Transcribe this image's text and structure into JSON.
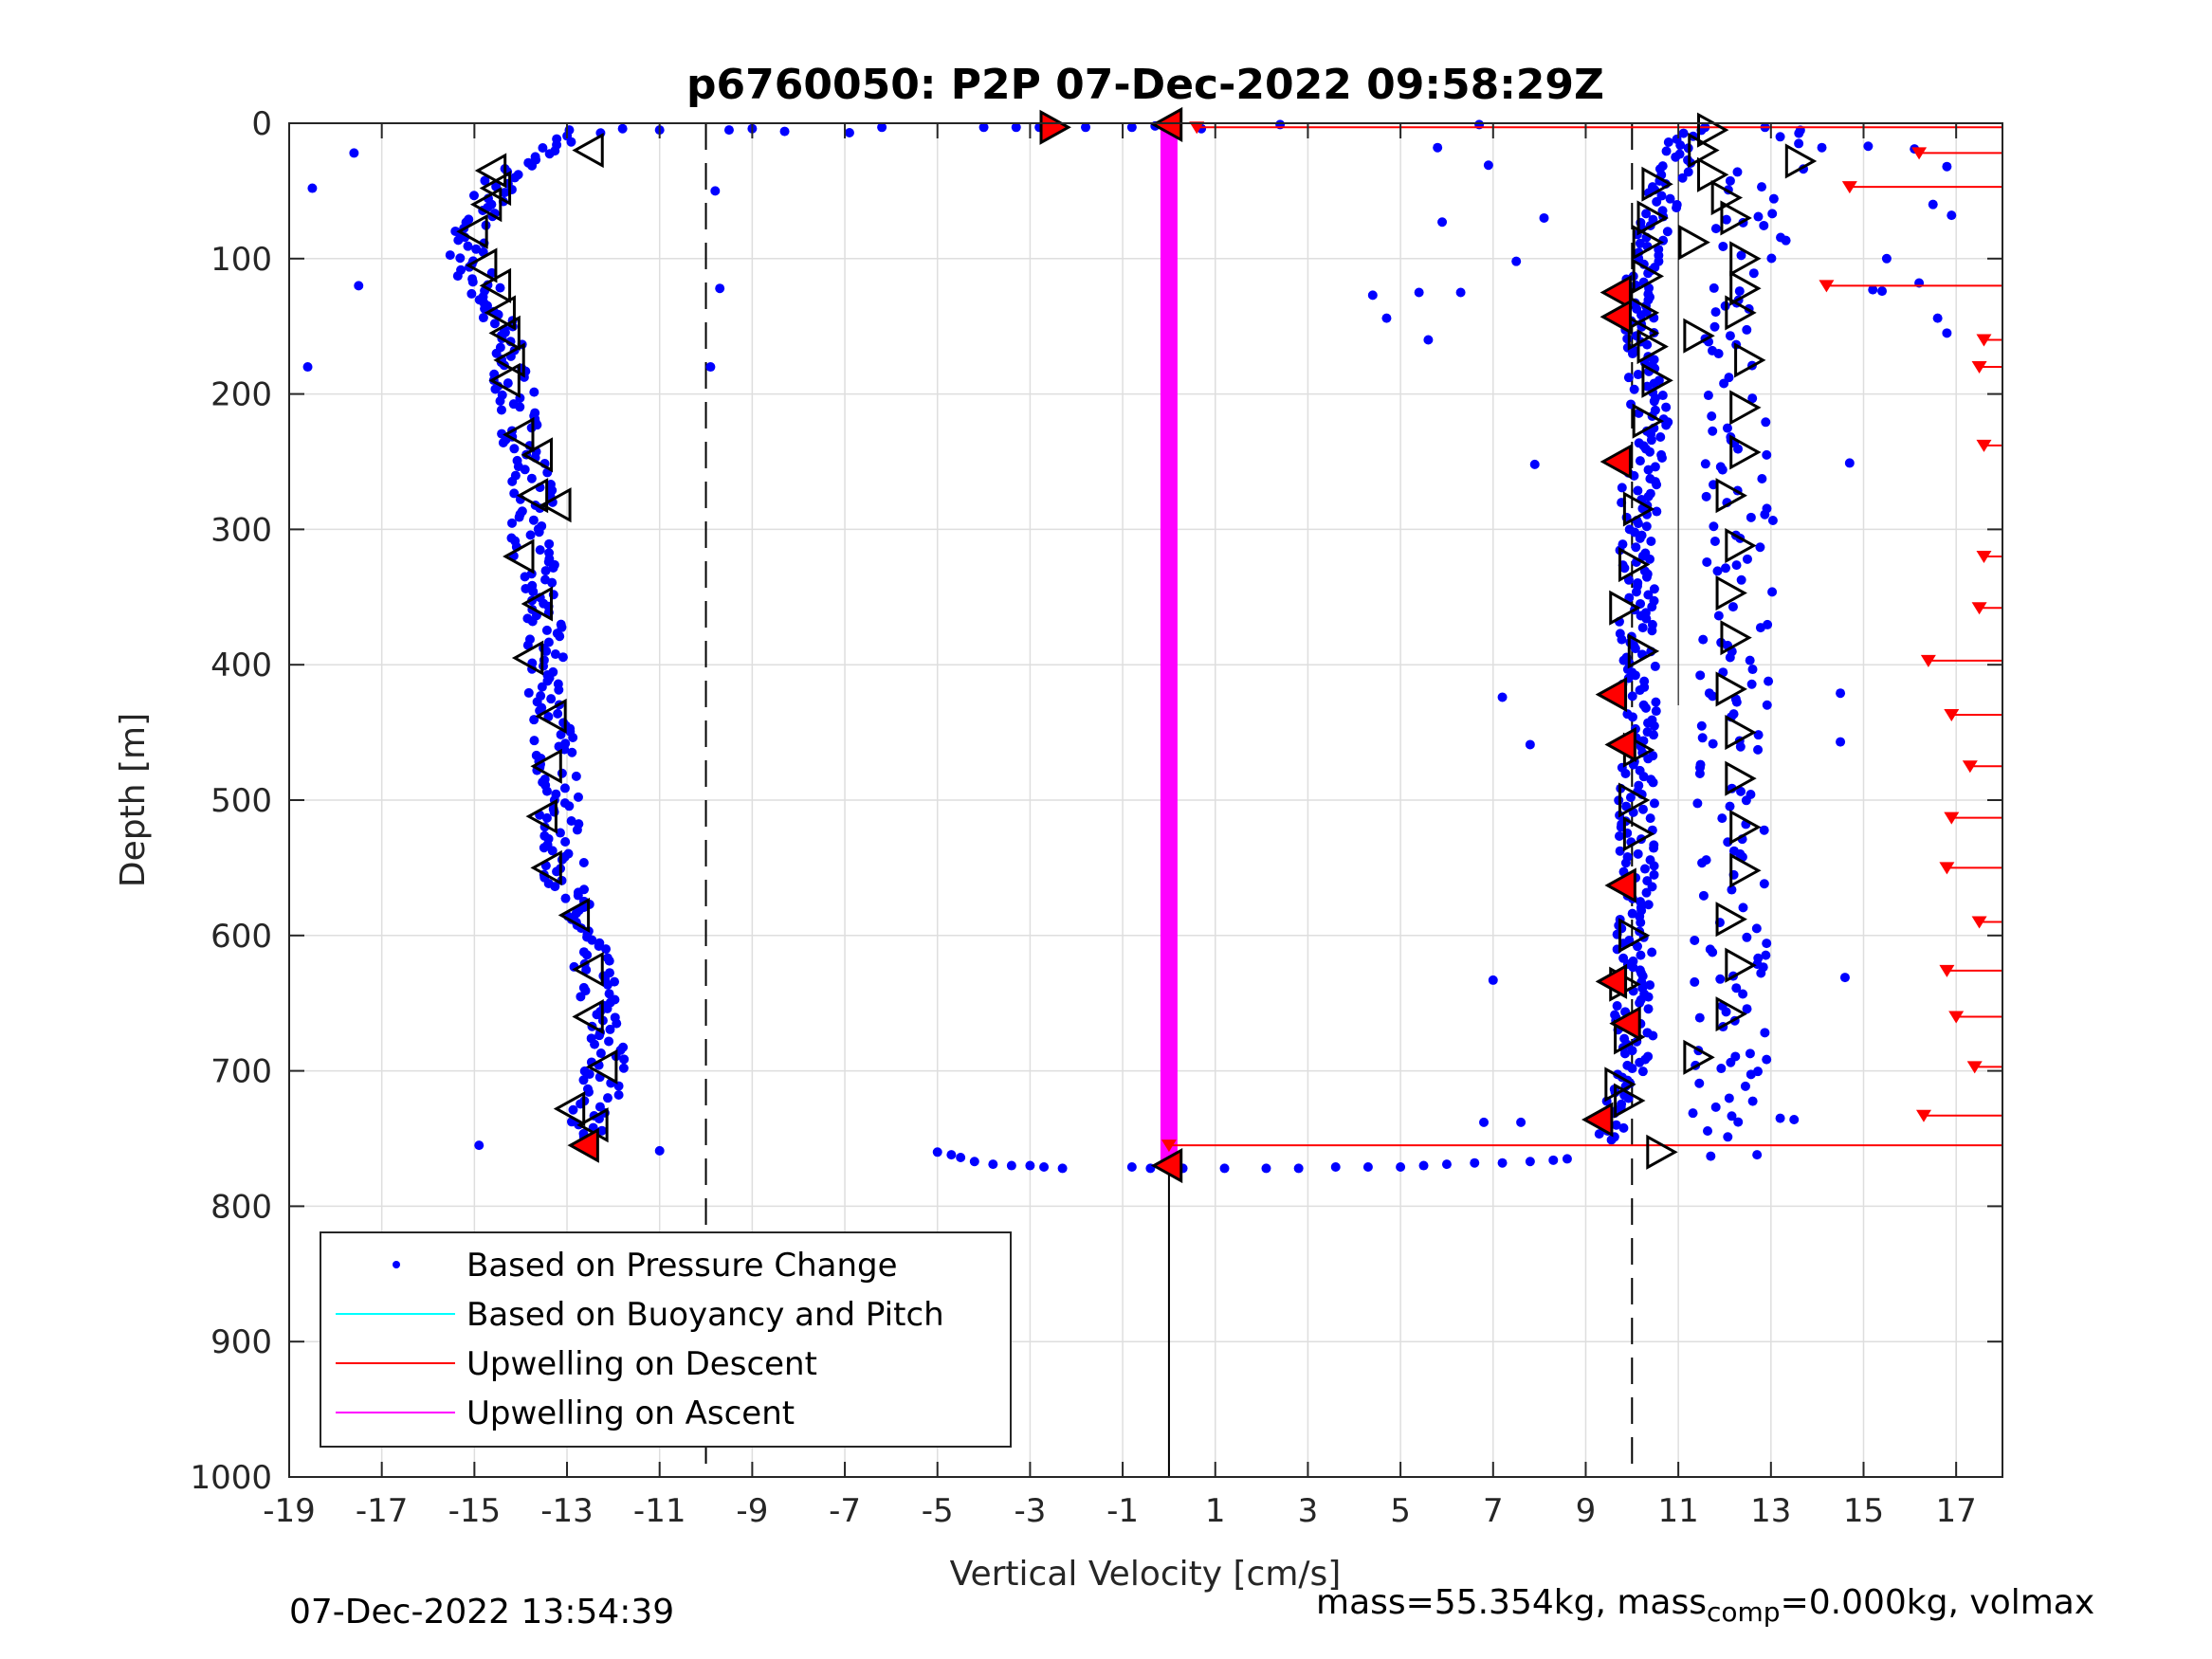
{
  "chart_data": {
    "type": "scatter",
    "title": "p6760050: P2P 07-Dec-2022 09:58:29Z",
    "xlabel": "Vertical Velocity [cm/s]",
    "ylabel": "Depth [m]",
    "xlim": [
      -19,
      18
    ],
    "ylim": [
      0,
      1000
    ],
    "y_reversed": true,
    "grid": true,
    "xticks": [
      "-19",
      "-17",
      "-15",
      "-13",
      "-11",
      "-9",
      "-7",
      "-5",
      "-3",
      "-1",
      "1",
      "3",
      "5",
      "7",
      "9",
      "11",
      "13",
      "15",
      "17"
    ],
    "yticks": [
      "0",
      "100",
      "200",
      "300",
      "400",
      "500",
      "600",
      "700",
      "800",
      "900",
      "1000"
    ],
    "legend_position": "bottom-left",
    "legend": [
      {
        "name": "Based on Pressure Change",
        "color": "#0000ff",
        "marker": "dot"
      },
      {
        "name": "Based on Buoyancy and Pitch",
        "color": "#00ffff",
        "marker": "line"
      },
      {
        "name": "Upwelling on Descent",
        "color": "#ff0000",
        "marker": "line"
      },
      {
        "name": "Upwelling on Ascent",
        "color": "#ff00ff",
        "marker": "line"
      }
    ],
    "reference_lines": {
      "dashed_x": [
        -10,
        10
      ],
      "solid_x_segment": {
        "x": 0,
        "y": [
          760,
          1000
        ]
      },
      "thin_solid_x_segment": {
        "x": 11,
        "y": [
          0,
          430
        ]
      }
    },
    "dive_profile": [
      [
        -12.5,
        5
      ],
      [
        -13.2,
        15
      ],
      [
        -14,
        30
      ],
      [
        -14.6,
        50
      ],
      [
        -15,
        70
      ],
      [
        -15.2,
        90
      ],
      [
        -15,
        110
      ],
      [
        -14.7,
        130
      ],
      [
        -14.5,
        150
      ],
      [
        -14.3,
        170
      ],
      [
        -14.2,
        190
      ],
      [
        -14.1,
        210
      ],
      [
        -13.9,
        240
      ],
      [
        -13.7,
        270
      ],
      [
        -13.8,
        300
      ],
      [
        -13.7,
        330
      ],
      [
        -13.6,
        360
      ],
      [
        -13.5,
        390
      ],
      [
        -13.4,
        420
      ],
      [
        -13.3,
        450
      ],
      [
        -13.2,
        480
      ],
      [
        -13.2,
        510
      ],
      [
        -13.1,
        540
      ],
      [
        -13,
        570
      ],
      [
        -12.7,
        600
      ],
      [
        -12.4,
        630
      ],
      [
        -12.3,
        660
      ],
      [
        -12.1,
        690
      ],
      [
        -12.3,
        720
      ],
      [
        -12.6,
        740
      ],
      [
        -12.8,
        755
      ]
    ],
    "climb_profile": [
      [
        9.5,
        750
      ],
      [
        9.6,
        735
      ],
      [
        9.9,
        720
      ],
      [
        10,
        700
      ],
      [
        10.1,
        680
      ],
      [
        10,
        660
      ],
      [
        10,
        640
      ],
      [
        10.1,
        620
      ],
      [
        10,
        600
      ],
      [
        10,
        580
      ],
      [
        10.2,
        560
      ],
      [
        10.1,
        540
      ],
      [
        10.1,
        520
      ],
      [
        10.1,
        500
      ],
      [
        10.1,
        480
      ],
      [
        10.2,
        460
      ],
      [
        10.2,
        440
      ],
      [
        10.1,
        420
      ],
      [
        10.2,
        400
      ],
      [
        10.1,
        380
      ],
      [
        10.1,
        360
      ],
      [
        10.2,
        340
      ],
      [
        10.1,
        320
      ],
      [
        10.2,
        300
      ],
      [
        10.1,
        280
      ],
      [
        10.2,
        260
      ],
      [
        10.3,
        240
      ],
      [
        10.4,
        220
      ],
      [
        10.3,
        200
      ],
      [
        10.3,
        180
      ],
      [
        10.2,
        160
      ],
      [
        10.1,
        140
      ],
      [
        10.1,
        120
      ],
      [
        10.3,
        100
      ],
      [
        10.5,
        80
      ],
      [
        10.6,
        60
      ],
      [
        10.8,
        40
      ],
      [
        11,
        25
      ],
      [
        11.2,
        10
      ],
      [
        11.5,
        3
      ]
    ],
    "surface_transition_points": [
      [
        -11.8,
        4
      ],
      [
        -11,
        5
      ],
      [
        -9.5,
        5
      ],
      [
        -9,
        4
      ],
      [
        -8.3,
        6
      ],
      [
        -6.9,
        7
      ],
      [
        -6.2,
        3
      ],
      [
        -4,
        3
      ],
      [
        -3.3,
        3
      ],
      [
        -2.8,
        3
      ],
      [
        -1.8,
        3
      ],
      [
        -0.8,
        3
      ],
      [
        -0.3,
        2
      ],
      [
        0.7,
        4
      ],
      [
        2.4,
        1
      ],
      [
        6.7,
        1
      ]
    ],
    "bottom_transition_points": [
      [
        -5,
        760
      ],
      [
        -4.7,
        762
      ],
      [
        -4.5,
        764
      ],
      [
        -4.2,
        767
      ],
      [
        -3.8,
        769
      ],
      [
        -3.4,
        770
      ],
      [
        -3,
        770
      ],
      [
        -2.7,
        771
      ],
      [
        -2.3,
        772
      ],
      [
        -0.8,
        771
      ],
      [
        -0.4,
        772
      ],
      [
        0.3,
        772
      ],
      [
        1.2,
        772
      ],
      [
        2.1,
        772
      ],
      [
        2.8,
        772
      ],
      [
        3.6,
        771
      ],
      [
        4.3,
        771
      ],
      [
        5,
        771
      ],
      [
        5.5,
        770
      ],
      [
        6,
        769
      ],
      [
        6.6,
        768
      ],
      [
        7.2,
        768
      ],
      [
        7.8,
        767
      ],
      [
        8.3,
        766
      ],
      [
        8.6,
        765
      ]
    ],
    "outlier_points": [
      [
        -18.5,
        48
      ],
      [
        -17.6,
        22
      ],
      [
        -17.5,
        120
      ],
      [
        -18.6,
        180
      ],
      [
        -14.9,
        755
      ],
      [
        -11,
        759
      ],
      [
        -9.8,
        50
      ],
      [
        -9.7,
        122
      ],
      [
        -9.9,
        180
      ],
      [
        5.8,
        18
      ],
      [
        6.9,
        31
      ],
      [
        5.9,
        73
      ],
      [
        8.1,
        70
      ],
      [
        7.5,
        102
      ],
      [
        4.4,
        127
      ],
      [
        5.4,
        125
      ],
      [
        6.3,
        125
      ],
      [
        4.7,
        144
      ],
      [
        5.6,
        160
      ],
      [
        7.9,
        252
      ],
      [
        7.2,
        424
      ],
      [
        7.8,
        459
      ],
      [
        7,
        633
      ],
      [
        6.8,
        738
      ],
      [
        7.6,
        738
      ],
      [
        11.7,
        763
      ],
      [
        12.7,
        762
      ],
      [
        13.2,
        10
      ],
      [
        13.6,
        15
      ],
      [
        14.1,
        18
      ],
      [
        15.1,
        17
      ],
      [
        16.1,
        19
      ],
      [
        16.8,
        32
      ],
      [
        15.5,
        100
      ],
      [
        15.2,
        123
      ],
      [
        15.4,
        124
      ],
      [
        16.2,
        118
      ],
      [
        16.5,
        60
      ],
      [
        16.9,
        68
      ],
      [
        16.6,
        144
      ],
      [
        16.8,
        155
      ],
      [
        14.7,
        251
      ],
      [
        14.5,
        421
      ],
      [
        14.5,
        457
      ],
      [
        14.6,
        631
      ],
      [
        13.2,
        735
      ],
      [
        13.5,
        736
      ]
    ],
    "descent_markers": [
      [
        -12.5,
        20
      ],
      [
        -14.6,
        35
      ],
      [
        -14.5,
        48
      ],
      [
        -14.7,
        60
      ],
      [
        -15,
        80
      ],
      [
        -14.8,
        105
      ],
      [
        -14.5,
        120
      ],
      [
        -14.4,
        140
      ],
      [
        -14.3,
        155
      ],
      [
        -14.2,
        175
      ],
      [
        -14.3,
        190
      ],
      [
        -14,
        230
      ],
      [
        -13.6,
        245
      ],
      [
        -13.7,
        275
      ],
      [
        -13.2,
        282
      ],
      [
        -14,
        320
      ],
      [
        -13.6,
        355
      ],
      [
        -13.8,
        395
      ],
      [
        -13.3,
        438
      ],
      [
        -13.4,
        475
      ],
      [
        -13.5,
        512
      ],
      [
        -13.4,
        550
      ],
      [
        -12.8,
        585
      ],
      [
        -12.5,
        625
      ],
      [
        -12.5,
        660
      ],
      [
        -12.2,
        697
      ],
      [
        -12.9,
        728
      ],
      [
        -12.4,
        740
      ]
    ],
    "ascent_markers": [
      [
        11.7,
        5
      ],
      [
        11.5,
        20
      ],
      [
        13.6,
        28
      ],
      [
        11.7,
        38
      ],
      [
        10.5,
        45
      ],
      [
        12,
        55
      ],
      [
        10.4,
        70
      ],
      [
        12.2,
        70
      ],
      [
        10.3,
        88
      ],
      [
        11.3,
        88
      ],
      [
        12.4,
        100
      ],
      [
        10.3,
        113
      ],
      [
        12.4,
        122
      ],
      [
        10.2,
        140
      ],
      [
        12.3,
        140
      ],
      [
        10.2,
        155
      ],
      [
        11.4,
        157
      ],
      [
        10.4,
        165
      ],
      [
        12.5,
        175
      ],
      [
        10.5,
        190
      ],
      [
        10.3,
        220
      ],
      [
        12.4,
        210
      ],
      [
        12.4,
        243
      ],
      [
        12.1,
        275
      ],
      [
        10.1,
        285
      ],
      [
        12.3,
        312
      ],
      [
        10,
        326
      ],
      [
        12.1,
        347
      ],
      [
        9.8,
        358
      ],
      [
        12.2,
        380
      ],
      [
        10.2,
        390
      ],
      [
        12.1,
        418
      ],
      [
        12.3,
        450
      ],
      [
        10.1,
        463
      ],
      [
        12.3,
        484
      ],
      [
        10,
        500
      ],
      [
        12.4,
        520
      ],
      [
        10.1,
        525
      ],
      [
        12.4,
        552
      ],
      [
        12.1,
        588
      ],
      [
        10,
        600
      ],
      [
        12.3,
        622
      ],
      [
        9.8,
        636
      ],
      [
        12.1,
        658
      ],
      [
        9.9,
        675
      ],
      [
        11.4,
        690
      ],
      [
        9.7,
        710
      ],
      [
        9.9,
        722
      ],
      [
        10.6,
        760
      ]
    ],
    "highlighted_markers": [
      [
        -2.5,
        3
      ],
      [
        0,
        1
      ],
      [
        9.7,
        125
      ],
      [
        9.7,
        143
      ],
      [
        9.7,
        250
      ],
      [
        9.6,
        422
      ],
      [
        9.8,
        459
      ],
      [
        9.8,
        563
      ],
      [
        9.6,
        634
      ],
      [
        9.9,
        665
      ],
      [
        9.3,
        736
      ],
      [
        -12.6,
        755
      ],
      [
        0,
        770
      ]
    ],
    "upwelling_on_ascent": {
      "x": 0,
      "y": [
        0,
        770
      ]
    },
    "upwelling_on_descent_lines": [
      {
        "y": 3,
        "x": [
          0.6,
          18
        ]
      },
      {
        "y": 755,
        "x": [
          0,
          18
        ]
      },
      {
        "y": 22,
        "x": [
          16.2,
          18
        ]
      },
      {
        "y": 47,
        "x": [
          14.7,
          18
        ]
      },
      {
        "y": 120,
        "x": [
          14.2,
          18
        ]
      },
      {
        "y": 160,
        "x": [
          17.6,
          18
        ]
      },
      {
        "y": 180,
        "x": [
          17.5,
          18
        ]
      },
      {
        "y": 238,
        "x": [
          17.6,
          18
        ]
      },
      {
        "y": 320,
        "x": [
          17.6,
          18
        ]
      },
      {
        "y": 358,
        "x": [
          17.5,
          18
        ]
      },
      {
        "y": 397,
        "x": [
          16.4,
          18
        ]
      },
      {
        "y": 437,
        "x": [
          16.9,
          18
        ]
      },
      {
        "y": 475,
        "x": [
          17.3,
          18
        ]
      },
      {
        "y": 513,
        "x": [
          16.9,
          18
        ]
      },
      {
        "y": 550,
        "x": [
          16.8,
          18
        ]
      },
      {
        "y": 590,
        "x": [
          17.5,
          18
        ]
      },
      {
        "y": 626,
        "x": [
          16.8,
          18
        ]
      },
      {
        "y": 660,
        "x": [
          17,
          18
        ]
      },
      {
        "y": 697,
        "x": [
          17.4,
          18
        ]
      },
      {
        "y": 733,
        "x": [
          16.3,
          18
        ]
      }
    ]
  },
  "footer": {
    "timestamp": "07-Dec-2022 13:54:39",
    "mass_prefix": "mass=55.354kg, mass",
    "mass_sub": "comp",
    "mass_suffix": "=0.000kg, volmax"
  }
}
